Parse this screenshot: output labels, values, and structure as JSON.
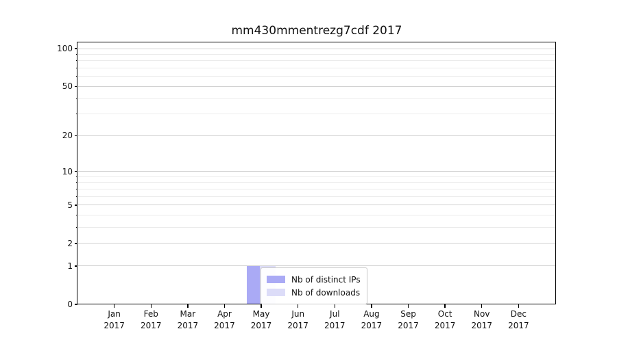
{
  "chart_data": {
    "type": "bar",
    "title": "mm430mmentrezg7cdf 2017",
    "categories": [
      "Jan",
      "Feb",
      "Mar",
      "Apr",
      "May",
      "Jun",
      "Jul",
      "Aug",
      "Sep",
      "Oct",
      "Nov",
      "Dec"
    ],
    "year_label": "2017",
    "series": [
      {
        "name": "Nb of distinct IPs",
        "color": "#aaaaf5",
        "values": [
          0,
          0,
          0,
          0,
          1,
          0,
          0,
          0,
          0,
          0,
          0,
          0
        ]
      },
      {
        "name": "Nb of downloads",
        "color": "#dcdcf8",
        "values": [
          0,
          0,
          0,
          0,
          1,
          0,
          0,
          0,
          0,
          0,
          0,
          0
        ]
      }
    ],
    "yscale": "log1p",
    "ylim": [
      0,
      112
    ],
    "major_yticks": [
      0,
      1,
      2,
      5,
      10,
      20,
      50,
      100
    ],
    "minor_yticks": [
      3,
      4,
      6,
      7,
      8,
      9,
      30,
      40,
      60,
      70,
      80,
      90
    ],
    "grid": {
      "major_color": "#d2d2d2",
      "minor_color": "#ebebeb"
    },
    "legend": {
      "position": "lower-center"
    }
  }
}
